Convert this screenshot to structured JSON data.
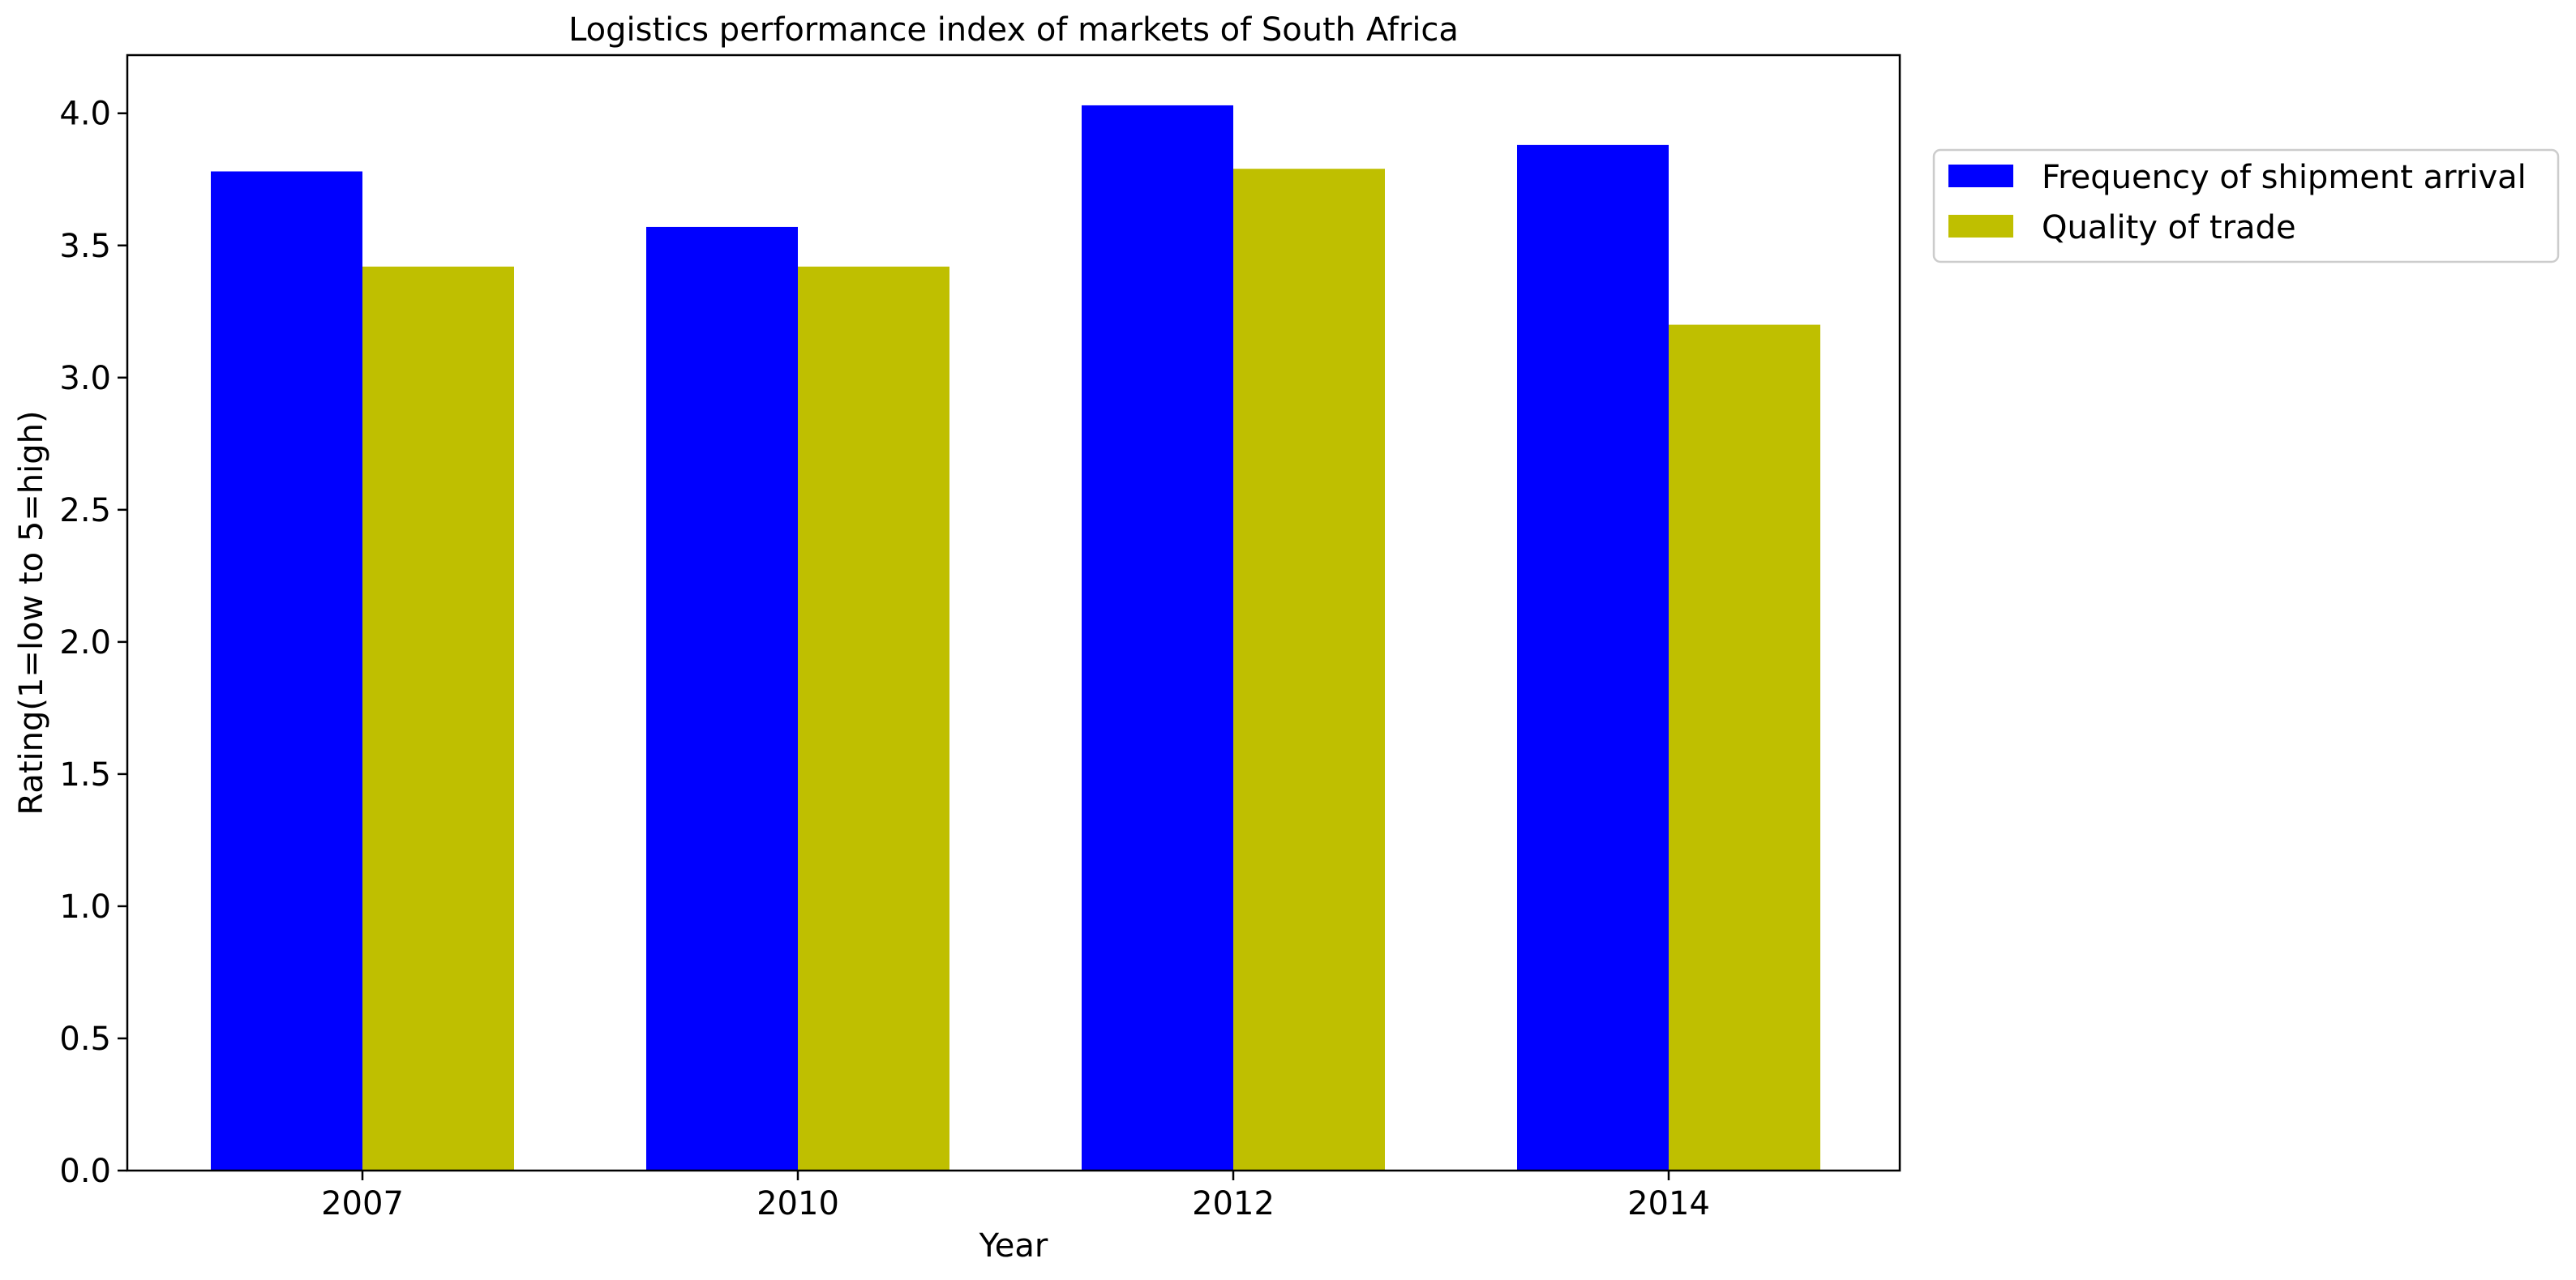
{
  "chart_data": {
    "type": "bar",
    "title": "Logistics performance index of markets of South Africa",
    "xlabel": "Year",
    "ylabel": "Rating(1=low to 5=high)",
    "categories": [
      "2007",
      "2010",
      "2012",
      "2014"
    ],
    "series": [
      {
        "name": "Frequency of shipment arrival",
        "color": "#0000ff",
        "values": [
          3.78,
          3.57,
          4.03,
          3.88
        ]
      },
      {
        "name": "Quality of trade",
        "color": "#bfbf00",
        "values": [
          3.42,
          3.42,
          3.79,
          3.2
        ]
      }
    ],
    "ylim": [
      0,
      4.22
    ],
    "yticks": [
      "0.0",
      "0.5",
      "1.0",
      "1.5",
      "2.0",
      "2.5",
      "3.0",
      "3.5",
      "4.0"
    ],
    "grid": false,
    "legend_position": "outside-top-right"
  }
}
